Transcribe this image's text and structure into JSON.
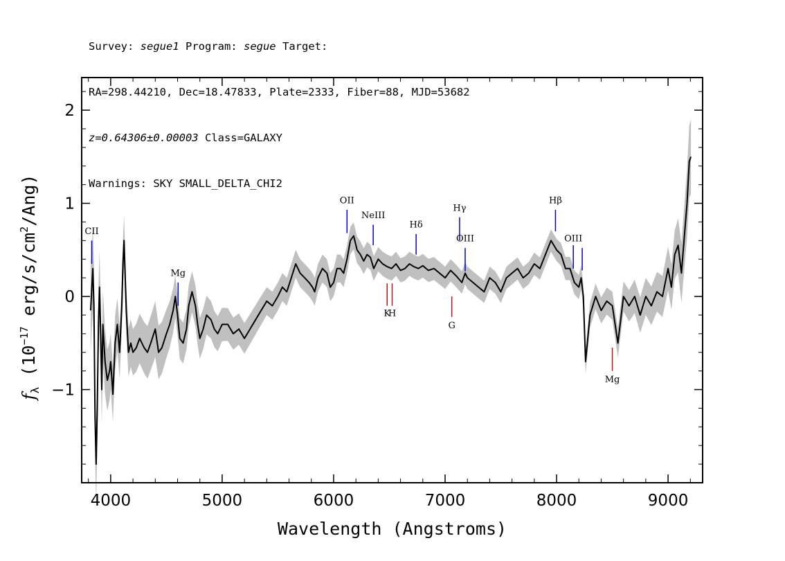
{
  "header": {
    "line1": {
      "survey_label": "Survey: ",
      "survey": "segue1",
      "program_label": " Program: ",
      "program": "segue",
      "target_label": " Target:"
    },
    "line2": "RA=298.44210, Dec=18.47833, Plate=2333, Fiber=88, MJD=53682",
    "line3": {
      "redshift": "z=0.64306±0.00003",
      "class": " Class=GALAXY"
    },
    "line4": "Warnings: SKY SMALL_DELTA_CHI2"
  },
  "chart_data": {
    "type": "line",
    "xlabel": "Wavelength (Angstroms)",
    "ylabel": "f_λ (10^-17 erg/s/cm^2/Ang)",
    "xlim": [
      3740,
      9310
    ],
    "ylim": [
      -2.0,
      2.35
    ],
    "xticks": [
      4000,
      5000,
      6000,
      7000,
      8000,
      9000
    ],
    "yticks": [
      -1,
      0,
      1,
      2
    ],
    "colors": {
      "flux": "#000000",
      "error_band": "#c0c0c0",
      "emission_line": "#0000cc",
      "absorption_line": "#aa1a1a"
    },
    "series": [
      {
        "key": "flux",
        "x": [
          3820,
          3840,
          3850,
          3860,
          3870,
          3880,
          3890,
          3900,
          3910,
          3920,
          3930,
          3950,
          3970,
          3990,
          4000,
          4020,
          4040,
          4060,
          4080,
          4100,
          4110,
          4120,
          4140,
          4160,
          4180,
          4200,
          4230,
          4260,
          4300,
          4330,
          4360,
          4400,
          4430,
          4460,
          4500,
          4530,
          4560,
          4580,
          4600,
          4620,
          4650,
          4680,
          4700,
          4730,
          4760,
          4780,
          4800,
          4830,
          4860,
          4900,
          4930,
          4960,
          5000,
          5050,
          5100,
          5150,
          5200,
          5250,
          5300,
          5350,
          5400,
          5450,
          5500,
          5540,
          5580,
          5620,
          5660,
          5700,
          5740,
          5780,
          5810,
          5830,
          5860,
          5900,
          5940,
          5970,
          6000,
          6030,
          6060,
          6090,
          6120,
          6150,
          6180,
          6210,
          6240,
          6270,
          6300,
          6330,
          6360,
          6400,
          6440,
          6480,
          6520,
          6560,
          6600,
          6640,
          6680,
          6720,
          6760,
          6800,
          6850,
          6900,
          6950,
          7000,
          7050,
          7100,
          7150,
          7180,
          7200,
          7250,
          7300,
          7350,
          7400,
          7450,
          7500,
          7550,
          7600,
          7650,
          7700,
          7750,
          7800,
          7850,
          7900,
          7950,
          8000,
          8040,
          8080,
          8120,
          8160,
          8200,
          8220,
          8240,
          8260,
          8300,
          8350,
          8400,
          8450,
          8500,
          8550,
          8600,
          8650,
          8700,
          8750,
          8800,
          8850,
          8900,
          8950,
          9000,
          9030,
          9060,
          9090,
          9120,
          9150,
          9170,
          9190,
          9205
        ],
        "y": [
          -0.15,
          0.3,
          -0.1,
          -1.3,
          -1.8,
          -1.2,
          -0.3,
          0.1,
          -0.4,
          -1.0,
          -0.3,
          -0.7,
          -0.9,
          -0.8,
          -0.7,
          -1.05,
          -0.5,
          -0.3,
          -0.6,
          -0.1,
          0.35,
          0.6,
          -0.15,
          -0.6,
          -0.5,
          -0.6,
          -0.55,
          -0.45,
          -0.55,
          -0.6,
          -0.5,
          -0.35,
          -0.6,
          -0.55,
          -0.4,
          -0.3,
          -0.15,
          0.0,
          -0.2,
          -0.45,
          -0.5,
          -0.35,
          -0.1,
          0.05,
          -0.1,
          -0.3,
          -0.45,
          -0.35,
          -0.2,
          -0.25,
          -0.35,
          -0.4,
          -0.3,
          -0.3,
          -0.4,
          -0.35,
          -0.45,
          -0.35,
          -0.25,
          -0.15,
          -0.05,
          -0.1,
          0.0,
          0.1,
          0.05,
          0.2,
          0.35,
          0.25,
          0.2,
          0.15,
          0.1,
          0.05,
          0.2,
          0.3,
          0.25,
          0.1,
          0.15,
          0.3,
          0.3,
          0.25,
          0.4,
          0.6,
          0.65,
          0.5,
          0.45,
          0.38,
          0.45,
          0.42,
          0.3,
          0.4,
          0.35,
          0.32,
          0.3,
          0.35,
          0.28,
          0.3,
          0.35,
          0.32,
          0.3,
          0.33,
          0.28,
          0.3,
          0.25,
          0.2,
          0.28,
          0.22,
          0.15,
          0.25,
          0.2,
          0.15,
          0.1,
          0.05,
          0.2,
          0.15,
          0.05,
          0.2,
          0.25,
          0.3,
          0.2,
          0.25,
          0.35,
          0.3,
          0.45,
          0.6,
          0.5,
          0.45,
          0.3,
          0.3,
          0.15,
          0.1,
          0.2,
          0.0,
          -0.7,
          -0.2,
          0.0,
          -0.15,
          -0.05,
          -0.1,
          -0.5,
          0.0,
          -0.1,
          0.0,
          -0.2,
          0.0,
          -0.1,
          0.05,
          0.0,
          0.3,
          0.1,
          0.45,
          0.55,
          0.25,
          0.7,
          1.0,
          1.45,
          1.5
        ]
      }
    ],
    "error_band_halfwidth": [
      0.45,
      0.4,
      0.3,
      0.25,
      0.3,
      0.22,
      0.22,
      0.18,
      0.15,
      0.15,
      0.15,
      0.13,
      0.13,
      0.12,
      0.12,
      0.12,
      0.12,
      0.12,
      0.13,
      0.14,
      0.16,
      0.2,
      0.22,
      0.25,
      0.3,
      0.35,
      0.4
    ],
    "error_band_x": [
      3820,
      3900,
      4000,
      4200,
      4400,
      4600,
      4800,
      5000,
      5400,
      5800,
      6100,
      6400,
      6700,
      7000,
      7300,
      7600,
      7800,
      8000,
      8200,
      8400,
      8600,
      8800,
      8950,
      9050,
      9100,
      9150,
      9205
    ],
    "line_markers": [
      {
        "label": "CII",
        "x": 3830,
        "kind": "emission",
        "y1": 0.35,
        "y2": 0.6,
        "label_y": 0.67
      },
      {
        "label": "Mg",
        "x": 4605,
        "kind": "emission",
        "y1": -0.1,
        "y2": 0.15,
        "label_y": 0.22
      },
      {
        "label": "OII",
        "x": 6120,
        "kind": "emission",
        "y1": 0.68,
        "y2": 0.93,
        "label_y": 1.0
      },
      {
        "label": "NeIII",
        "x": 6355,
        "kind": "emission",
        "y1": 0.55,
        "y2": 0.77,
        "label_y": 0.84
      },
      {
        "label": "Hδ",
        "x": 6740,
        "kind": "emission",
        "y1": 0.45,
        "y2": 0.67,
        "label_y": 0.74
      },
      {
        "label": "Hγ",
        "x": 7130,
        "kind": "emission",
        "y1": 0.6,
        "y2": 0.85,
        "label_y": 0.92
      },
      {
        "label": "OIII",
        "x": 7180,
        "kind": "emission",
        "y1": 0.27,
        "y2": 0.52,
        "label_y": 0.59
      },
      {
        "label": "Hβ",
        "x": 7990,
        "kind": "emission",
        "y1": 0.7,
        "y2": 0.93,
        "label_y": 1.0
      },
      {
        "label": "OIII",
        "x": 8150,
        "kind": "emission",
        "y1": 0.3,
        "y2": 0.55,
        "label_y": 0.59
      },
      {
        "label": "OIII",
        "x": 8230,
        "kind": "emission",
        "y1": 0.28,
        "y2": 0.52,
        "label_y": null
      },
      {
        "label": "K",
        "x": 6480,
        "kind": "absorption",
        "y1": 0.14,
        "y2": -0.1,
        "label_y": -0.21
      },
      {
        "label": "H",
        "x": 6525,
        "kind": "absorption",
        "y1": 0.14,
        "y2": -0.1,
        "label_y": -0.21
      },
      {
        "label": "G",
        "x": 7060,
        "kind": "absorption",
        "y1": 0.0,
        "y2": -0.22,
        "label_y": -0.34
      },
      {
        "label": "Mg",
        "x": 8500,
        "kind": "absorption",
        "y1": -0.55,
        "y2": -0.8,
        "label_y": -0.92
      }
    ]
  }
}
